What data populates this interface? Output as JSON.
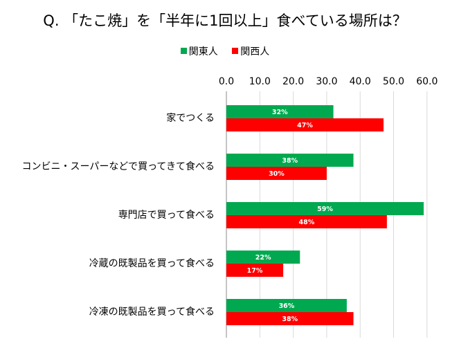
{
  "title": "Q. 「たこ焼」を「半年に1回以上」食べている場所は？",
  "chart_data": {
    "type": "bar",
    "orientation": "horizontal",
    "categories": [
      "家でつくる",
      "コンビニ・スーパーなどで買ってきて食べる",
      "専門店で買って食べる",
      "冷蔵の既製品を買って食べる",
      "冷凍の既製品を買って食べる"
    ],
    "series": [
      {
        "name": "関東人",
        "color": "#00a94f",
        "values": [
          32,
          38,
          59,
          22,
          36
        ],
        "labels": [
          "32%",
          "38%",
          "59%",
          "22%",
          "36%"
        ]
      },
      {
        "name": "関西人",
        "color": "#ff0000",
        "values": [
          47,
          30,
          48,
          17,
          38
        ],
        "labels": [
          "47%",
          "30%",
          "48%",
          "17%",
          "38%"
        ]
      }
    ],
    "xlim": [
      0,
      60
    ],
    "xticks": [
      "0.0",
      "10.0",
      "20.0",
      "30.0",
      "40.0",
      "50.0",
      "60.0"
    ],
    "x_axis_position": "top",
    "grid": true,
    "legend_position": "top"
  }
}
